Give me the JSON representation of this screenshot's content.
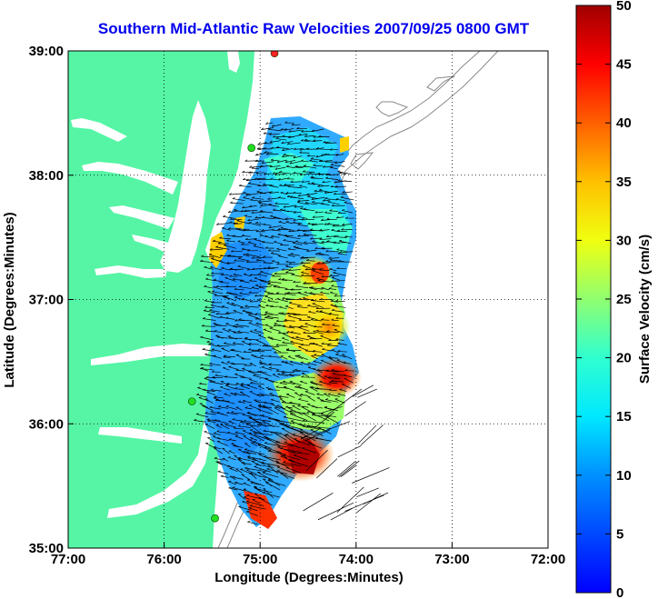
{
  "title": "Southern Mid-Atlantic Raw Velocities 2007/09/25 0800 GMT",
  "map": {
    "xlabel": "Longitude (Degrees:Minutes)",
    "ylabel": "Latitude (Degrees:Minutes)",
    "lon_ticks": [
      "77:00",
      "76:00",
      "75:00",
      "74:00",
      "73:00",
      "72:00"
    ],
    "lat_ticks": [
      "39:00",
      "38:00",
      "37:00",
      "36:00",
      "35:00"
    ],
    "lon_range": [
      -77,
      -72
    ],
    "lat_range": [
      35,
      39
    ],
    "grid": "dotted",
    "land_color": "#55f5a5",
    "contour_color": "#8a8a8a",
    "station_color": "#22dd22",
    "station_alt_color": "#ff2222",
    "stations": [
      {
        "lon": -74.85,
        "lat": 38.98,
        "color": "red"
      },
      {
        "lon": -75.09,
        "lat": 38.22,
        "color": "green"
      },
      {
        "lon": -75.71,
        "lat": 36.18,
        "color": "green"
      },
      {
        "lon": -75.47,
        "lat": 35.24,
        "color": "green"
      }
    ]
  },
  "colorbar": {
    "label": "Surface Velocity (cm/s)",
    "ticks": [
      "0",
      "5",
      "10",
      "15",
      "20",
      "25",
      "30",
      "35",
      "40",
      "45",
      "50"
    ],
    "min": 0,
    "max": 50,
    "colormap": "jet"
  }
}
